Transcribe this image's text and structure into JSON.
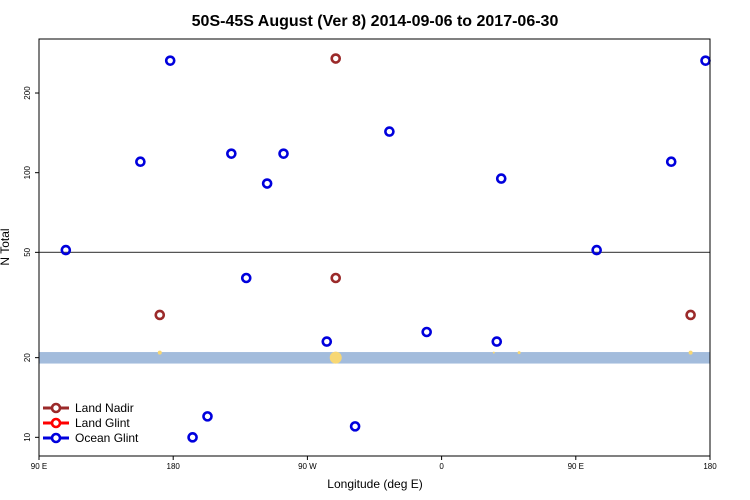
{
  "chart_data": {
    "type": "scatter",
    "title": "50S-45S August (Ver 8)   2014-09-06 to 2017-06-30",
    "xlabel": "Longitude (deg E)",
    "ylabel": "N Total",
    "xlim": [
      90,
      540
    ],
    "ylim_log": [
      8.5,
      320
    ],
    "y_scale": "log",
    "x_ticks": [
      {
        "value": 90,
        "label": "90 E"
      },
      {
        "value": 180,
        "label": "180"
      },
      {
        "value": 270,
        "label": "90 W"
      },
      {
        "value": 360,
        "label": "0"
      },
      {
        "value": 450,
        "label": "90 E"
      },
      {
        "value": 540,
        "label": "180"
      }
    ],
    "y_ticks": [
      {
        "value": 10,
        "label": "10"
      },
      {
        "value": 20,
        "label": "20"
      },
      {
        "value": 50,
        "label": "50"
      },
      {
        "value": 100,
        "label": "100"
      },
      {
        "value": 200,
        "label": "200"
      }
    ],
    "reference_line": 50,
    "band": {
      "from": 19,
      "to": 21,
      "color": "#a3bcdc"
    },
    "series": [
      {
        "name": "Land Nadir",
        "color": "#9b2a2a",
        "points": [
          {
            "x": 171,
            "y": 29
          },
          {
            "x": 289,
            "y": 270
          },
          {
            "x": 289,
            "y": 40
          },
          {
            "x": 527,
            "y": 29
          }
        ]
      },
      {
        "name": "Land Glint",
        "color": "#ff0000",
        "points": []
      },
      {
        "name": "Ocean Glint",
        "color": "#0000dd",
        "points": [
          {
            "x": 108,
            "y": 51
          },
          {
            "x": 158,
            "y": 110
          },
          {
            "x": 178,
            "y": 265
          },
          {
            "x": 193,
            "y": 10
          },
          {
            "x": 203,
            "y": 12
          },
          {
            "x": 219,
            "y": 118
          },
          {
            "x": 229,
            "y": 40
          },
          {
            "x": 243,
            "y": 91
          },
          {
            "x": 254,
            "y": 118
          },
          {
            "x": 283,
            "y": 23
          },
          {
            "x": 302,
            "y": 11
          },
          {
            "x": 325,
            "y": 143
          },
          {
            "x": 350,
            "y": 25
          },
          {
            "x": 397,
            "y": 23
          },
          {
            "x": 400,
            "y": 95
          },
          {
            "x": 464,
            "y": 51
          },
          {
            "x": 514,
            "y": 110
          },
          {
            "x": 537,
            "y": 265
          }
        ]
      }
    ],
    "legend_position": "bottom-left",
    "colors": {
      "axis": "#000000",
      "band": "#a3bcdc",
      "sun_marks": "#f7d774"
    }
  }
}
